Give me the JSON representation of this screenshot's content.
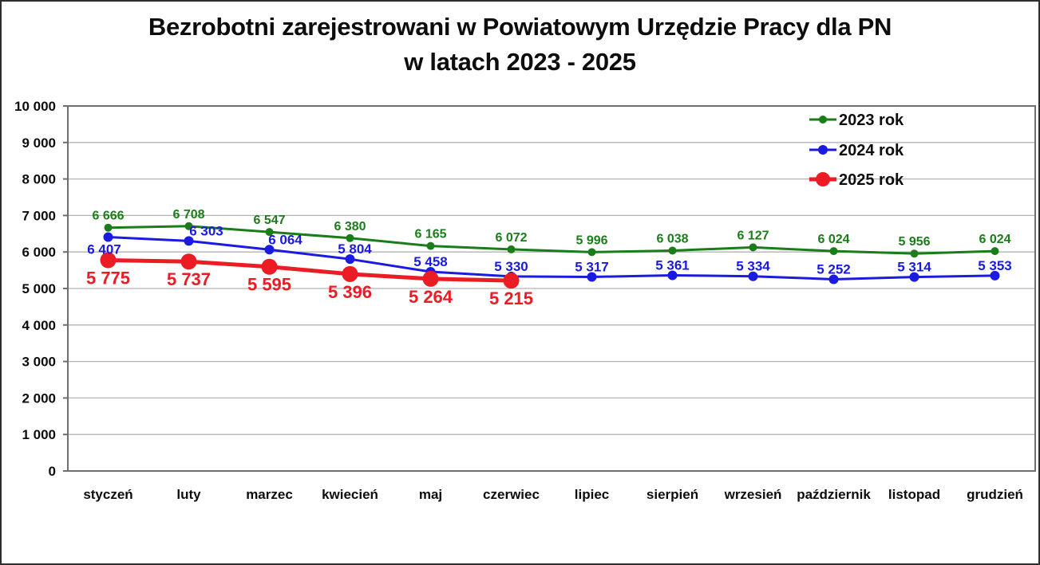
{
  "title": {
    "line1": "Bezrobotni zarejestrowani w Powiatowym Urzędzie Pracy dla PN",
    "line2": "w latach 2023 - 2025"
  },
  "chart_data": {
    "type": "line",
    "categories": [
      "styczeń",
      "luty",
      "marzec",
      "kwiecień",
      "maj",
      "czerwiec",
      "lipiec",
      "sierpień",
      "wrzesień",
      "październik",
      "listopad",
      "grudzień"
    ],
    "series": [
      {
        "name": "2023 rok",
        "color": "#1a7d1a",
        "line_width": 3,
        "marker_radius": 5,
        "label_font_size": 16,
        "label_dy": -10,
        "values": [
          6666,
          6708,
          6547,
          6380,
          6165,
          6072,
          5996,
          6038,
          6127,
          6024,
          5956,
          6024
        ]
      },
      {
        "name": "2024 rok",
        "color": "#1a1ae0",
        "line_width": 3,
        "marker_radius": 6,
        "label_font_size": 17,
        "label_dy": -7,
        "label_overrides": {
          "0": {
            "dx": -5,
            "dy": 21
          },
          "1": {
            "dx": 22
          },
          "2": {
            "dx": 20
          },
          "3": {
            "dx": 6
          }
        },
        "values": [
          6407,
          6303,
          6064,
          5804,
          5458,
          5330,
          5317,
          5361,
          5334,
          5252,
          5314,
          5353
        ]
      },
      {
        "name": "2025 rok",
        "color": "#ec1c24",
        "line_width": 5,
        "marker_radius": 10,
        "label_font_size": 22,
        "label_dy": 30,
        "values": [
          5775,
          5737,
          5595,
          5396,
          5264,
          5215
        ]
      }
    ],
    "ylim": [
      0,
      10000
    ],
    "y_tick_step": 1000,
    "y_tick_labels": [
      "0",
      "1 000",
      "2 000",
      "3 000",
      "4 000",
      "5 000",
      "6 000",
      "7 000",
      "8 000",
      "9 000",
      "10 000"
    ],
    "grid": "horizontal-on",
    "legend_position": "top-right",
    "number_format": "space-thousands"
  },
  "colors": {
    "grid": "#b3b3b3",
    "axis": "#6e6e6e",
    "text": "#0d0d0d",
    "background": "#ffffff"
  }
}
